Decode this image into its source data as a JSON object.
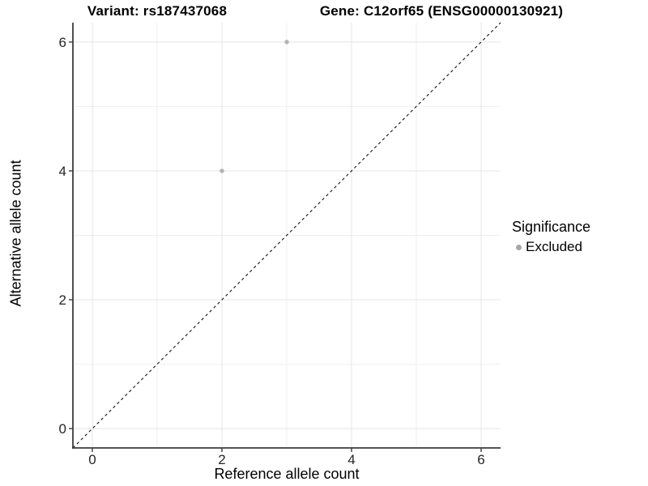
{
  "titles": {
    "variant": "Variant: rs187437068",
    "gene": "Gene: C12orf65 (ENSG00000130921)"
  },
  "chart_data": {
    "type": "scatter",
    "title_left": "Variant: rs187437068",
    "title_right": "Gene: C12orf65 (ENSG00000130921)",
    "xlabel": "Reference allele count",
    "ylabel": "Alternative allele count",
    "xlim": [
      -0.3,
      6.3
    ],
    "ylim": [
      -0.3,
      6.3
    ],
    "xticks": [
      0,
      2,
      4,
      6
    ],
    "yticks": [
      0,
      2,
      4,
      6
    ],
    "minor_gridlines": [
      1,
      3,
      5
    ],
    "grid": "on",
    "points": [
      {
        "x": 2,
        "y": 4,
        "series": "Excluded"
      },
      {
        "x": 3,
        "y": 6,
        "series": "Excluded"
      }
    ],
    "identity_line": {
      "style": "dashed",
      "from": [
        -0.3,
        -0.3
      ],
      "to": [
        6.3,
        6.3
      ]
    },
    "legend": {
      "title": "Significance",
      "position": "right",
      "entries": [
        {
          "label": "Excluded",
          "color": "#a6a6a6"
        }
      ]
    },
    "colors": {
      "point": "#b3b3b3",
      "grid_major": "#e4e4e4",
      "grid_minor": "#efefef",
      "axis_line": "#3c3c3c",
      "tick_label": "#262626",
      "identity_line": "#111111"
    }
  }
}
